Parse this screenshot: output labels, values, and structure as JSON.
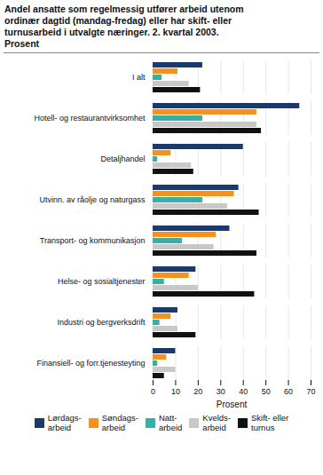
{
  "chart_data": {
    "type": "bar",
    "orientation": "horizontal",
    "title": "Andel ansatte som regelmessig utfører arbeid utenom\nordinær dagtid (mandag-fredag) eller har skift- eller\nturnusarbeid i utvalgte næringer. 2. kvartal 2003.\nProsent",
    "categories": [
      "I alt",
      "Hotell- og restaurantvirksomhet",
      "Detaljhandel",
      "Utvinn. av råolje og naturgass",
      "Transport- og kommunikasjon",
      "Helse- og sosialtjenester",
      "Industri og bergverksdrift",
      "Finansiell- og forr.tjenesteyting"
    ],
    "series": [
      {
        "name": "Lørdags-\narbeid",
        "color": "#1a3a6b",
        "values": [
          22,
          65,
          40,
          38,
          34,
          19,
          11,
          10
        ]
      },
      {
        "name": "Søndags-\narbeid",
        "color": "#f59120",
        "values": [
          11,
          46,
          8,
          36,
          28,
          16,
          8,
          6
        ]
      },
      {
        "name": "Natt-\narbeid",
        "color": "#3aada8",
        "values": [
          4,
          22,
          2,
          22,
          13,
          5,
          3,
          2
        ]
      },
      {
        "name": "Kvelds-\narbeid",
        "color": "#c8c8c8",
        "values": [
          16,
          46,
          17,
          33,
          27,
          20,
          11,
          10
        ]
      },
      {
        "name": "Skift- eller\nturnus",
        "color": "#111111",
        "values": [
          21,
          48,
          18,
          47,
          46,
          45,
          19,
          5
        ]
      }
    ],
    "xlim": [
      0,
      70
    ],
    "xticks": [
      0,
      10,
      20,
      30,
      40,
      50,
      60,
      70
    ],
    "xlabel": "Prosent",
    "grid": true,
    "legend": "bottom"
  }
}
